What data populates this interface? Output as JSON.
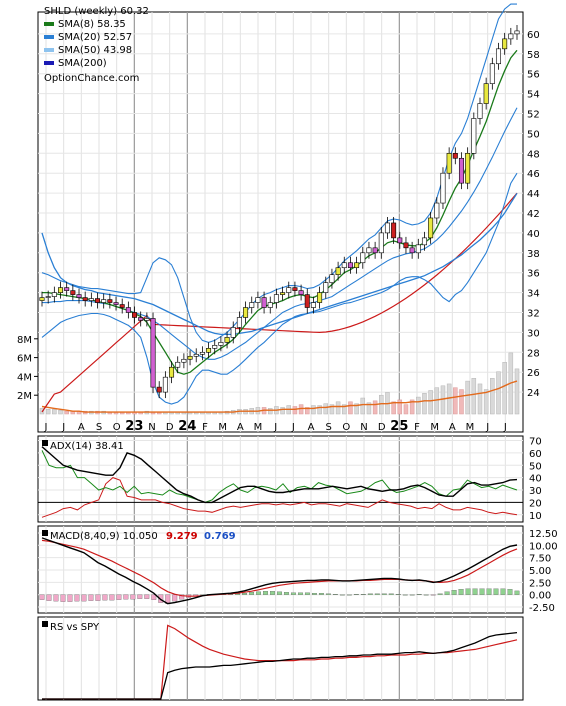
{
  "chart_data": [
    {
      "type": "line",
      "title": "SHLD (weekly)",
      "last_value": "60.32",
      "credit": "OptionChance.com",
      "x_tick_labels": [
        "J",
        "J",
        "A",
        "S",
        "O",
        "23",
        "N",
        "D",
        "24",
        "F",
        "M",
        "A",
        "M",
        "J",
        "J",
        "A",
        "S",
        "O",
        "N",
        "D",
        "25",
        "F",
        "M",
        "A",
        "M",
        "J",
        "J"
      ],
      "year_labels": [
        "23",
        "24",
        "25"
      ],
      "ylim": [
        22,
        62
      ],
      "y_ticks": [
        "24",
        "26",
        "28",
        "30",
        "32",
        "34",
        "36",
        "38",
        "40",
        "42",
        "44",
        "46",
        "48",
        "50",
        "52",
        "54",
        "56",
        "58",
        "60"
      ],
      "volume_ylim": [
        0,
        10
      ],
      "volume_ticks": [
        "2M",
        "4M",
        "6M",
        "8M"
      ],
      "legend": [
        {
          "label": "SHLD (weekly)",
          "value": "60.32",
          "color": "#000000"
        },
        {
          "label": "SMA(8)",
          "value": "58.35",
          "color": "#1a7a1a"
        },
        {
          "label": "SMA(20)",
          "value": "52.57",
          "color": "#2a7fd4"
        },
        {
          "label": "SMA(50)",
          "value": "43.98",
          "color": "#8ec3ee"
        },
        {
          "label": "SMA(200)",
          "value": "",
          "color": "#1a1ab4"
        }
      ],
      "price": [
        33.5,
        33.6,
        34.0,
        34.5,
        34.2,
        33.8,
        33.5,
        33.2,
        33.4,
        33.0,
        33.3,
        33.0,
        32.8,
        32.5,
        32.0,
        31.5,
        31.2,
        31.4,
        24.5,
        24.0,
        25.5,
        26.5,
        27.0,
        27.3,
        27.6,
        27.8,
        28.0,
        28.4,
        28.7,
        29.0,
        29.5,
        30.5,
        31.5,
        32.5,
        33.0,
        33.5,
        32.5,
        33.0,
        33.8,
        34.0,
        34.5,
        34.2,
        33.8,
        32.5,
        33.0,
        34.0,
        35.0,
        35.8,
        36.5,
        37.0,
        36.5,
        37.0,
        38.0,
        38.5,
        38.0,
        40.0,
        41.0,
        39.5,
        39.0,
        38.5,
        38.0,
        38.8,
        39.5,
        41.5,
        43.0,
        46.0,
        48.0,
        47.5,
        45.0,
        48.0,
        51.5,
        53.0,
        55.0,
        57.0,
        58.5,
        59.5,
        60.0,
        60.3
      ],
      "sma8": [
        34.0,
        34.0,
        33.9,
        33.8,
        33.7,
        33.6,
        33.5,
        33.4,
        33.3,
        33.1,
        33.0,
        32.8,
        32.6,
        32.4,
        32.2,
        31.9,
        31.6,
        31.0,
        30.0,
        29.0,
        28.0,
        27.0,
        26.0,
        25.8,
        26.0,
        26.5,
        27.0,
        27.5,
        28.0,
        28.4,
        28.8,
        29.3,
        30.0,
        30.8,
        31.5,
        32.2,
        32.6,
        32.8,
        33.0,
        33.2,
        33.5,
        33.7,
        33.8,
        33.6,
        33.5,
        33.8,
        34.3,
        34.8,
        35.4,
        36.0,
        36.3,
        36.7,
        37.2,
        37.7,
        38.0,
        38.5,
        39.0,
        39.2,
        39.0,
        38.8,
        38.7,
        38.7,
        39.0,
        39.5,
        40.5,
        41.8,
        43.2,
        44.5,
        45.5,
        46.8,
        48.3,
        49.7,
        51.2,
        53.0,
        54.8,
        56.3,
        57.6,
        58.35
      ],
      "sma20": [
        33.0,
        33.0,
        33.1,
        33.1,
        33.2,
        33.2,
        33.2,
        33.2,
        33.1,
        33.0,
        32.9,
        32.8,
        32.6,
        32.4,
        32.2,
        32.0,
        31.8,
        31.6,
        31.2,
        30.8,
        30.3,
        29.8,
        29.3,
        28.8,
        28.3,
        27.8,
        27.5,
        27.3,
        27.3,
        27.5,
        27.8,
        28.2,
        28.6,
        29.0,
        29.5,
        30.0,
        30.5,
        31.0,
        31.5,
        32.0,
        32.3,
        32.6,
        32.8,
        32.9,
        33.0,
        33.2,
        33.4,
        33.6,
        34.0,
        34.4,
        34.8,
        35.2,
        35.6,
        36.0,
        36.4,
        36.8,
        37.2,
        37.5,
        37.7,
        37.9,
        38.0,
        38.2,
        38.4,
        38.8,
        39.3,
        39.9,
        40.6,
        41.4,
        42.2,
        43.1,
        44.1,
        45.2,
        46.4,
        47.6,
        48.9,
        50.2,
        51.4,
        52.57
      ],
      "sma50": [
        40.0,
        38.0,
        36.5,
        35.5,
        35.0,
        34.7,
        34.5,
        34.3,
        34.2,
        34.0,
        33.9,
        33.8,
        33.7,
        33.6,
        33.5,
        33.4,
        33.2,
        33.0,
        32.8,
        32.5,
        32.2,
        31.9,
        31.6,
        31.3,
        31.0,
        30.7,
        30.4,
        30.1,
        29.9,
        29.8,
        29.8,
        29.8,
        29.9,
        30.0,
        30.1,
        30.3,
        30.5,
        30.7,
        30.9,
        31.1,
        31.3,
        31.5,
        31.7,
        31.9,
        32.1,
        32.3,
        32.5,
        32.7,
        32.9,
        33.1,
        33.3,
        33.5,
        33.7,
        33.9,
        34.1,
        34.3,
        34.5,
        34.7,
        34.9,
        35.1,
        35.3,
        35.5,
        35.7,
        36.0,
        36.3,
        36.6,
        37.0,
        37.4,
        37.8,
        38.3,
        38.8,
        39.3,
        39.9,
        40.5,
        41.2,
        42.0,
        43.0,
        43.98
      ],
      "upper_band": [
        36.0,
        35.8,
        35.5,
        35.2,
        35.0,
        34.8,
        34.6,
        34.5,
        34.4,
        34.4,
        34.3,
        34.2,
        34.1,
        34.0,
        33.9,
        33.9,
        34.0,
        35.5,
        37.0,
        37.5,
        37.3,
        36.8,
        35.5,
        33.5,
        31.5,
        30.0,
        29.2,
        29.0,
        29.2,
        29.6,
        30.0,
        30.6,
        31.3,
        32.0,
        32.8,
        33.4,
        33.8,
        34.0,
        34.3,
        34.5,
        34.7,
        34.7,
        34.6,
        34.4,
        34.5,
        34.8,
        35.3,
        35.8,
        36.5,
        37.2,
        37.7,
        38.2,
        38.8,
        39.4,
        39.8,
        40.5,
        41.2,
        41.4,
        41.3,
        41.0,
        40.8,
        40.9,
        41.2,
        42.0,
        43.5,
        45.5,
        47.5,
        49.0,
        50.0,
        51.5,
        53.5,
        55.5,
        57.5,
        59.5,
        61.5,
        62.5,
        63.0,
        63.0
      ],
      "lower_band": [
        29.5,
        30.0,
        30.5,
        31.0,
        31.3,
        31.5,
        31.7,
        31.8,
        31.9,
        31.9,
        31.8,
        31.6,
        31.3,
        31.0,
        30.7,
        30.2,
        29.5,
        27.5,
        25.0,
        23.5,
        23.0,
        22.8,
        23.0,
        23.5,
        24.5,
        25.6,
        26.2,
        26.2,
        26.0,
        25.8,
        25.8,
        26.2,
        26.7,
        27.3,
        27.9,
        28.5,
        29.0,
        29.6,
        30.2,
        30.8,
        31.2,
        31.6,
        31.8,
        31.9,
        32.0,
        32.1,
        32.3,
        32.5,
        32.7,
        32.9,
        33.0,
        33.2,
        33.4,
        33.6,
        33.8,
        34.0,
        34.3,
        34.7,
        35.2,
        35.5,
        35.6,
        35.6,
        35.3,
        34.9,
        34.2,
        33.5,
        33.1,
        33.8,
        34.2,
        35.0,
        36.0,
        37.0,
        38.0,
        39.5,
        41.0,
        43.0,
        45.0,
        46.0
      ],
      "volume_m": [
        0.6,
        0.5,
        0.5,
        0.4,
        0.3,
        0.3,
        0.3,
        0.3,
        0.3,
        0.3,
        0.3,
        0.2,
        0.2,
        0.2,
        0.2,
        0.2,
        0.2,
        0.3,
        0.2,
        0.2,
        0.2,
        0.2,
        0.2,
        0.2,
        0.2,
        0.2,
        0.2,
        0.2,
        0.2,
        0.2,
        0.3,
        0.4,
        0.5,
        0.5,
        0.6,
        0.7,
        0.7,
        0.6,
        0.8,
        0.7,
        0.9,
        0.8,
        1.0,
        0.7,
        0.9,
        0.9,
        1.1,
        1.0,
        1.3,
        1.0,
        1.3,
        1.1,
        1.7,
        1.2,
        1.4,
        2.0,
        2.3,
        1.3,
        1.5,
        1.0,
        1.5,
        1.8,
        2.2,
        2.5,
        2.8,
        3.0,
        3.2,
        2.8,
        2.6,
        3.5,
        3.8,
        3.2,
        2.6,
        3.8,
        4.5,
        5.5,
        6.5,
        4.8
      ],
      "volume_sma_m": [
        0.8,
        0.7,
        0.6,
        0.5,
        0.4,
        0.3,
        0.3,
        0.2,
        0.2,
        0.2,
        0.2,
        0.2,
        0.2,
        0.2,
        0.2,
        0.2,
        0.2,
        0.2,
        0.2,
        0.2,
        0.2,
        0.2,
        0.2,
        0.2,
        0.2,
        0.2,
        0.2,
        0.2,
        0.2,
        0.2,
        0.2,
        0.2,
        0.3,
        0.3,
        0.3,
        0.3,
        0.4,
        0.4,
        0.4,
        0.5,
        0.5,
        0.5,
        0.6,
        0.6,
        0.6,
        0.7,
        0.7,
        0.8,
        0.8,
        0.8,
        0.9,
        0.9,
        1.0,
        1.0,
        1.0,
        1.1,
        1.1,
        1.2,
        1.2,
        1.2,
        1.3,
        1.3,
        1.4,
        1.4,
        1.5,
        1.6,
        1.7,
        1.8,
        1.9,
        2.0,
        2.1,
        2.2,
        2.3,
        2.5,
        2.7,
        3.0,
        3.3,
        3.5
      ]
    },
    {
      "type": "line",
      "title": "ADX(14)",
      "last_value": "38.41",
      "y_ticks": [
        "10",
        "20",
        "30",
        "40",
        "50",
        "60",
        "70"
      ],
      "ylim": [
        5,
        72
      ],
      "reference_level": 20,
      "adx": [
        65,
        60,
        55,
        50,
        48,
        46,
        45,
        44,
        43,
        42,
        42,
        48,
        60,
        58,
        55,
        50,
        45,
        40,
        35,
        30,
        27,
        25,
        22,
        20,
        20,
        23,
        26,
        29,
        32,
        33,
        33,
        31,
        29,
        28,
        28,
        29,
        30,
        31,
        31,
        31,
        32,
        33,
        32,
        31,
        32,
        33,
        31,
        30,
        29,
        30,
        30,
        31,
        33,
        34,
        32,
        29,
        26,
        25,
        25,
        30,
        35,
        36,
        34,
        34,
        35,
        36,
        38,
        38.41
      ],
      "plus_di": [
        62,
        50,
        48,
        48,
        50,
        40,
        40,
        35,
        30,
        32,
        30,
        33,
        28,
        33,
        27,
        28,
        27,
        26,
        30,
        27,
        26,
        24,
        22,
        20,
        22,
        28,
        32,
        35,
        30,
        28,
        32,
        33,
        32,
        30,
        35,
        28,
        32,
        33,
        31,
        36,
        34,
        33,
        30,
        27,
        28,
        29,
        32,
        36,
        38,
        31,
        28,
        29,
        31,
        33,
        36,
        33,
        27,
        25,
        30,
        31,
        38,
        35,
        32,
        33,
        31,
        34,
        32,
        30
      ],
      "minus_di": [
        8,
        10,
        12,
        15,
        16,
        14,
        18,
        20,
        22,
        35,
        40,
        38,
        25,
        24,
        22,
        22,
        22,
        20,
        19,
        17,
        15,
        14,
        13,
        13,
        12,
        14,
        16,
        17,
        16,
        17,
        18,
        19,
        19,
        18,
        19,
        18,
        19,
        20,
        18,
        19,
        19,
        18,
        17,
        19,
        18,
        17,
        16,
        19,
        22,
        20,
        19,
        18,
        17,
        15,
        16,
        15,
        19,
        16,
        14,
        14,
        16,
        15,
        14,
        12,
        11,
        12,
        11,
        10
      ]
    },
    {
      "type": "line",
      "title": "MACD(8,40,9)",
      "values_shown": [
        "10.050",
        "9.279",
        "0.769"
      ],
      "value_colors": [
        "#000000",
        "#cc0000",
        "#1a4fc4"
      ],
      "y_ticks": [
        "-2.50",
        "0.00",
        "2.50",
        "5.00",
        "7.50",
        "10.00",
        "12.50"
      ],
      "ylim": [
        -3.5,
        13.5
      ],
      "macd": [
        11.5,
        11,
        10.5,
        10,
        9.5,
        9,
        8.5,
        7.5,
        6.5,
        5.8,
        5,
        4.2,
        3.5,
        2.7,
        2,
        1.2,
        0.3,
        -1.0,
        -1.8,
        -1.6,
        -1.3,
        -1.0,
        -0.6,
        -0.2,
        0.0,
        0.1,
        0.2,
        0.3,
        0.5,
        0.8,
        1.2,
        1.6,
        2.0,
        2.3,
        2.5,
        2.6,
        2.7,
        2.8,
        2.9,
        2.9,
        3.0,
        3.0,
        2.9,
        2.8,
        2.8,
        2.9,
        3.0,
        3.1,
        3.2,
        3.3,
        3.3,
        3.2,
        3.0,
        2.9,
        3.0,
        2.8,
        2.5,
        2.7,
        3.2,
        3.8,
        4.5,
        5.2,
        6.0,
        6.8,
        7.6,
        8.4,
        9.2,
        9.8,
        10.05
      ],
      "signal": [
        11,
        10.8,
        10.5,
        10.2,
        9.9,
        9.6,
        9.2,
        8.6,
        8.0,
        7.4,
        6.8,
        6.1,
        5.4,
        4.7,
        4.0,
        3.2,
        2.4,
        1.4,
        0.6,
        0.1,
        -0.2,
        -0.3,
        -0.3,
        -0.2,
        -0.1,
        0.0,
        0.1,
        0.2,
        0.3,
        0.5,
        0.7,
        1.0,
        1.3,
        1.6,
        1.9,
        2.1,
        2.3,
        2.4,
        2.5,
        2.6,
        2.7,
        2.8,
        2.8,
        2.8,
        2.8,
        2.8,
        2.9,
        2.9,
        3.0,
        3.1,
        3.1,
        3.1,
        3.0,
        2.9,
        2.9,
        2.8,
        2.6,
        2.5,
        2.6,
        2.9,
        3.4,
        4.0,
        4.8,
        5.6,
        6.4,
        7.2,
        8.0,
        8.7,
        9.279
      ],
      "histogram": [
        -1,
        -1.2,
        -1.3,
        -1.4,
        -1.4,
        -1.3,
        -1.3,
        -1.2,
        -1.2,
        -1.1,
        -1.1,
        -1.0,
        -0.9,
        -0.9,
        -0.8,
        -0.8,
        -1.0,
        -1.6,
        -1.8,
        -1.3,
        -0.9,
        -0.6,
        -0.3,
        0.0,
        0.1,
        0.1,
        0.1,
        0.1,
        0.2,
        0.3,
        0.5,
        0.6,
        0.7,
        0.7,
        0.6,
        0.5,
        0.4,
        0.4,
        0.4,
        0.3,
        0.3,
        0.2,
        0.1,
        0.0,
        0.0,
        0.1,
        0.1,
        0.2,
        0.2,
        0.2,
        0.2,
        0.1,
        0.0,
        0.0,
        0.1,
        0.0,
        -0.1,
        0.2,
        0.6,
        0.9,
        1.1,
        1.2,
        1.2,
        1.2,
        1.2,
        1.2,
        1.2,
        1.1,
        0.77
      ]
    },
    {
      "type": "line",
      "title": "RS vs SPY",
      "rs": [
        0,
        0,
        0,
        0,
        0,
        0,
        0,
        0,
        0,
        0,
        0,
        0,
        0,
        0,
        0,
        0,
        0,
        0,
        0.33,
        0.36,
        0.38,
        0.39,
        0.4,
        0.4,
        0.4,
        0.41,
        0.42,
        0.42,
        0.43,
        0.44,
        0.45,
        0.46,
        0.47,
        0.47,
        0.48,
        0.49,
        0.5,
        0.5,
        0.51,
        0.51,
        0.52,
        0.52,
        0.53,
        0.53,
        0.54,
        0.54,
        0.55,
        0.55,
        0.56,
        0.56,
        0.56,
        0.57,
        0.58,
        0.58,
        0.59,
        0.58,
        0.57,
        0.58,
        0.59,
        0.61,
        0.64,
        0.67,
        0.7,
        0.74,
        0.78,
        0.8,
        0.81,
        0.82,
        0.83
      ],
      "rs_ma": [
        0,
        0,
        0,
        0,
        0,
        0,
        0,
        0,
        0,
        0,
        0,
        0,
        0,
        0,
        0,
        0,
        0,
        0,
        0.92,
        0.88,
        0.82,
        0.76,
        0.71,
        0.66,
        0.62,
        0.59,
        0.56,
        0.54,
        0.52,
        0.5,
        0.49,
        0.48,
        0.48,
        0.48,
        0.48,
        0.48,
        0.48,
        0.49,
        0.49,
        0.49,
        0.5,
        0.5,
        0.51,
        0.51,
        0.52,
        0.52,
        0.53,
        0.53,
        0.54,
        0.54,
        0.55,
        0.55,
        0.55,
        0.56,
        0.56,
        0.57,
        0.57,
        0.58,
        0.58,
        0.59,
        0.6,
        0.61,
        0.62,
        0.64,
        0.66,
        0.68,
        0.7,
        0.72,
        0.74
      ]
    }
  ]
}
